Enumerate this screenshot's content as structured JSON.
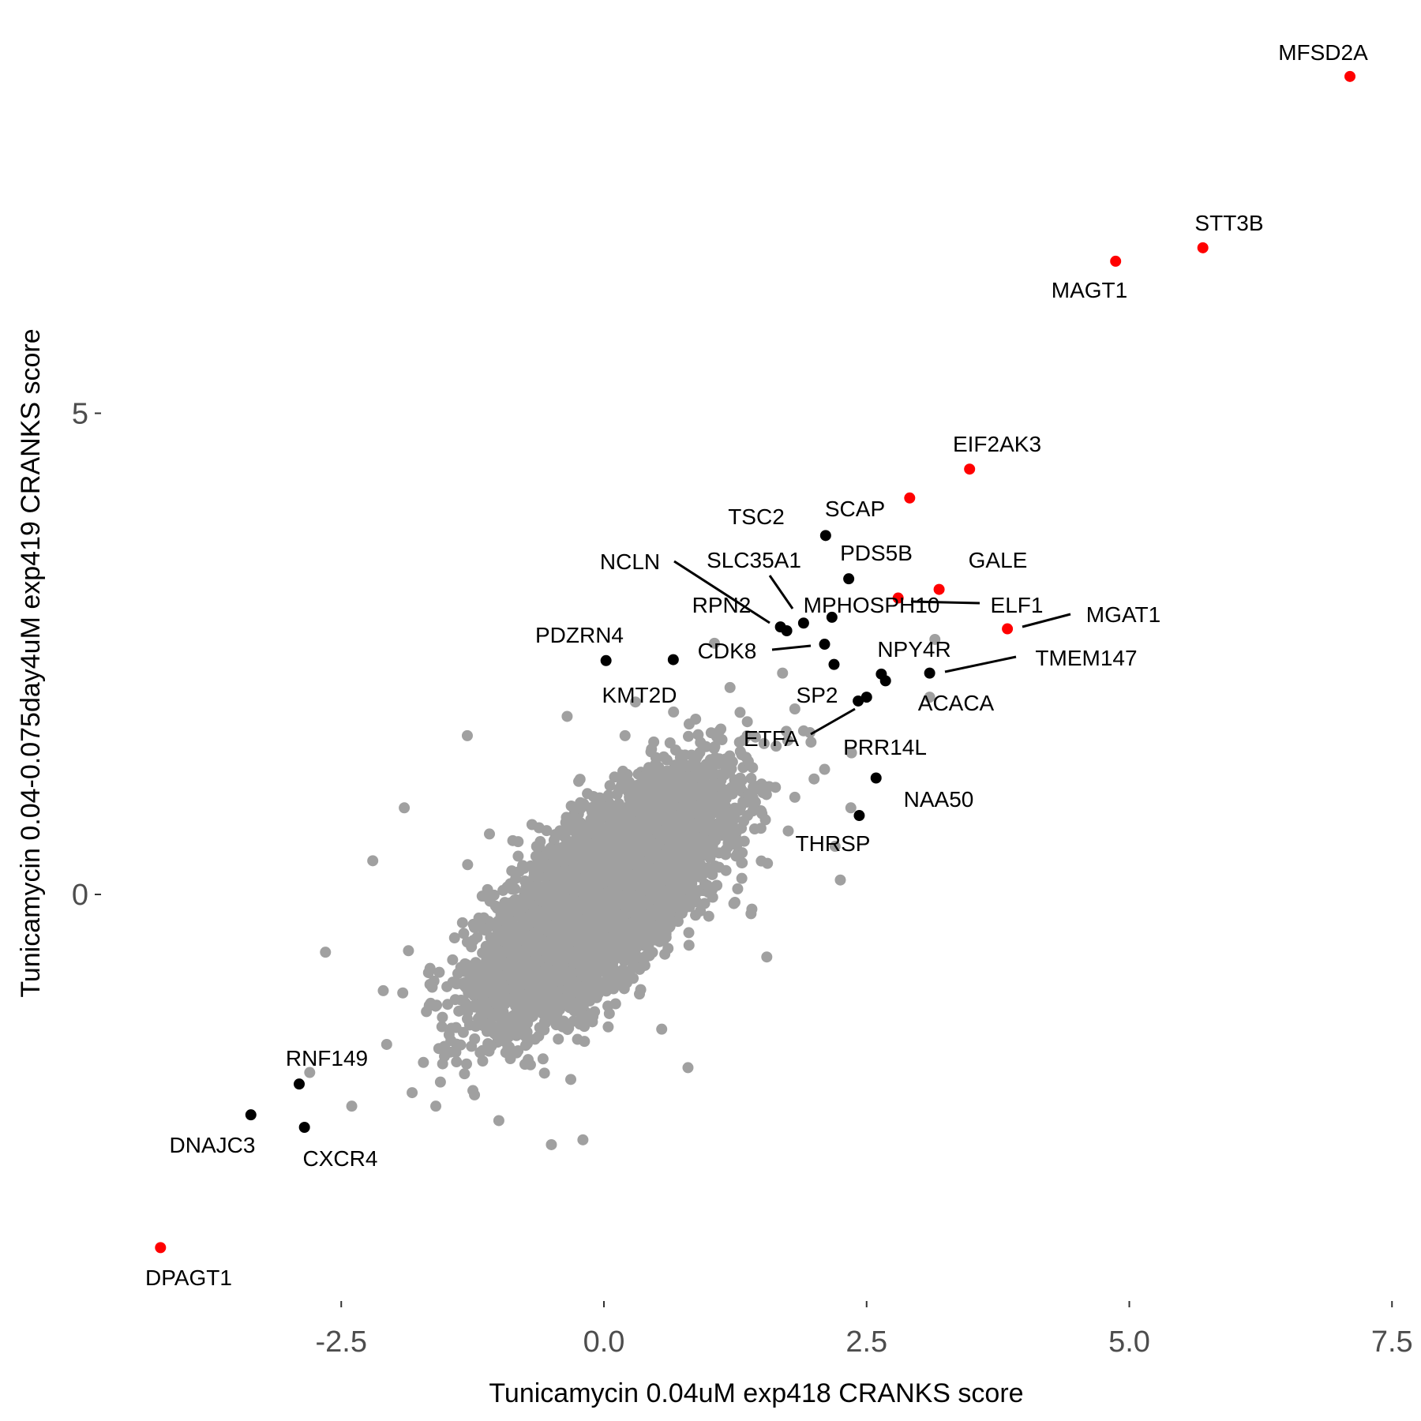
{
  "chart_data": {
    "type": "scatter",
    "title": "",
    "xlabel": "Tunicamycin 0.04uM exp418 CRANKS score",
    "ylabel": "Tunicamycin 0.04-0.075day4uM exp419 CRANKS score",
    "xlim": [
      -4.4,
      7.6
    ],
    "ylim": [
      -4.2,
      8.9
    ],
    "xticks": [
      -2.5,
      0.0,
      2.5,
      5.0,
      7.5
    ],
    "xtick_labels": [
      "-2.5",
      "0.0",
      "2.5",
      "5.0",
      "7.5"
    ],
    "yticks": [
      0,
      5
    ],
    "ytick_labels": [
      "0",
      "5"
    ],
    "grid": false,
    "colors": {
      "background_genes": "#a0a0a0",
      "hit": "#000000",
      "highlight": "#ff0000"
    },
    "background_cloud": {
      "n": 6000,
      "x_sd": 0.55,
      "y_sd": 0.6,
      "correlation": 0.72
    },
    "background_outliers": [
      [
        -2.2,
        0.35
      ],
      [
        -2.65,
        -0.6
      ],
      [
        -1.9,
        0.9
      ],
      [
        -2.8,
        -1.85
      ],
      [
        -2.4,
        -2.2
      ],
      [
        -1.3,
        1.65
      ],
      [
        -0.35,
        1.85
      ],
      [
        0.3,
        2.0
      ],
      [
        1.2,
        2.15
      ],
      [
        1.7,
        2.3
      ],
      [
        1.75,
        1.6
      ],
      [
        2.0,
        1.2
      ],
      [
        2.2,
        0.5
      ],
      [
        2.25,
        0.15
      ],
      [
        1.55,
        -0.65
      ],
      [
        1.4,
        -0.2
      ],
      [
        0.8,
        -1.8
      ],
      [
        0.55,
        -1.4
      ],
      [
        -0.5,
        -2.6
      ],
      [
        -0.2,
        -2.55
      ],
      [
        -1.0,
        -2.35
      ],
      [
        -1.6,
        -2.2
      ],
      [
        3.15,
        2.65
      ],
      [
        3.1,
        2.05
      ],
      [
        2.35,
        0.9
      ],
      [
        1.9,
        1.7
      ],
      [
        2.1,
        1.3
      ],
      [
        -2.1,
        -1.0
      ]
    ],
    "points": [
      {
        "label": "MFSD2A",
        "x": 7.1,
        "y": 8.5,
        "group": "highlight"
      },
      {
        "label": "STT3B",
        "x": 5.7,
        "y": 6.72,
        "group": "highlight"
      },
      {
        "label": "MAGT1",
        "x": 4.87,
        "y": 6.58,
        "group": "highlight"
      },
      {
        "label": "EIF2AK3",
        "x": 3.48,
        "y": 4.42,
        "group": "highlight"
      },
      {
        "label": "SCAP",
        "x": 2.91,
        "y": 4.12,
        "group": "highlight"
      },
      {
        "label": "TSC2",
        "x": 2.11,
        "y": 3.73,
        "group": "hit"
      },
      {
        "label": "PDS5B",
        "x": 2.33,
        "y": 3.28,
        "group": "hit"
      },
      {
        "label": "GALE",
        "x": 3.19,
        "y": 3.17,
        "group": "highlight"
      },
      {
        "label": "NCLN",
        "x": 1.68,
        "y": 2.78,
        "group": "hit"
      },
      {
        "label": "SLC35A1",
        "x": 1.9,
        "y": 2.82,
        "group": "hit"
      },
      {
        "label": "RPN2",
        "x": 1.74,
        "y": 2.74,
        "group": "hit"
      },
      {
        "label": "MPHOSPH10",
        "x": 2.17,
        "y": 2.88,
        "group": "hit"
      },
      {
        "label": "ELF1",
        "x": 2.8,
        "y": 3.08,
        "group": "highlight"
      },
      {
        "label": "MGAT1",
        "x": 3.84,
        "y": 2.76,
        "group": "highlight"
      },
      {
        "label": "PDZRN4",
        "x": 0.02,
        "y": 2.43,
        "group": "hit"
      },
      {
        "label": "CDK8",
        "x": 2.1,
        "y": 2.6,
        "group": "hit"
      },
      {
        "label": "NPY4R",
        "x": 2.64,
        "y": 2.29,
        "group": "hit"
      },
      {
        "label": "TMEM147",
        "x": 3.1,
        "y": 2.3,
        "group": "hit"
      },
      {
        "label": "KMT2D",
        "x": 0.66,
        "y": 2.44,
        "group": "hit"
      },
      {
        "label": "SP2",
        "x": 2.5,
        "y": 2.05,
        "group": "hit"
      },
      {
        "label": "ACACA",
        "x": 2.68,
        "y": 2.22,
        "group": "hit"
      },
      {
        "label": "ETFA",
        "x": 2.42,
        "y": 2.01,
        "group": "hit"
      },
      {
        "label": "PRR14L",
        "x": 2.19,
        "y": 2.39,
        "group": "hit"
      },
      {
        "label": "NAA50",
        "x": 2.59,
        "y": 1.21,
        "group": "hit"
      },
      {
        "label": "THRSP",
        "x": 2.43,
        "y": 0.82,
        "group": "hit"
      },
      {
        "label": "RNF149",
        "x": -2.9,
        "y": -1.97,
        "group": "hit"
      },
      {
        "label": "DNAJC3",
        "x": -3.36,
        "y": -2.29,
        "group": "hit"
      },
      {
        "label": "CXCR4",
        "x": -2.85,
        "y": -2.42,
        "group": "hit"
      },
      {
        "label": "DPAGT1",
        "x": -4.22,
        "y": -3.67,
        "group": "highlight"
      }
    ]
  }
}
